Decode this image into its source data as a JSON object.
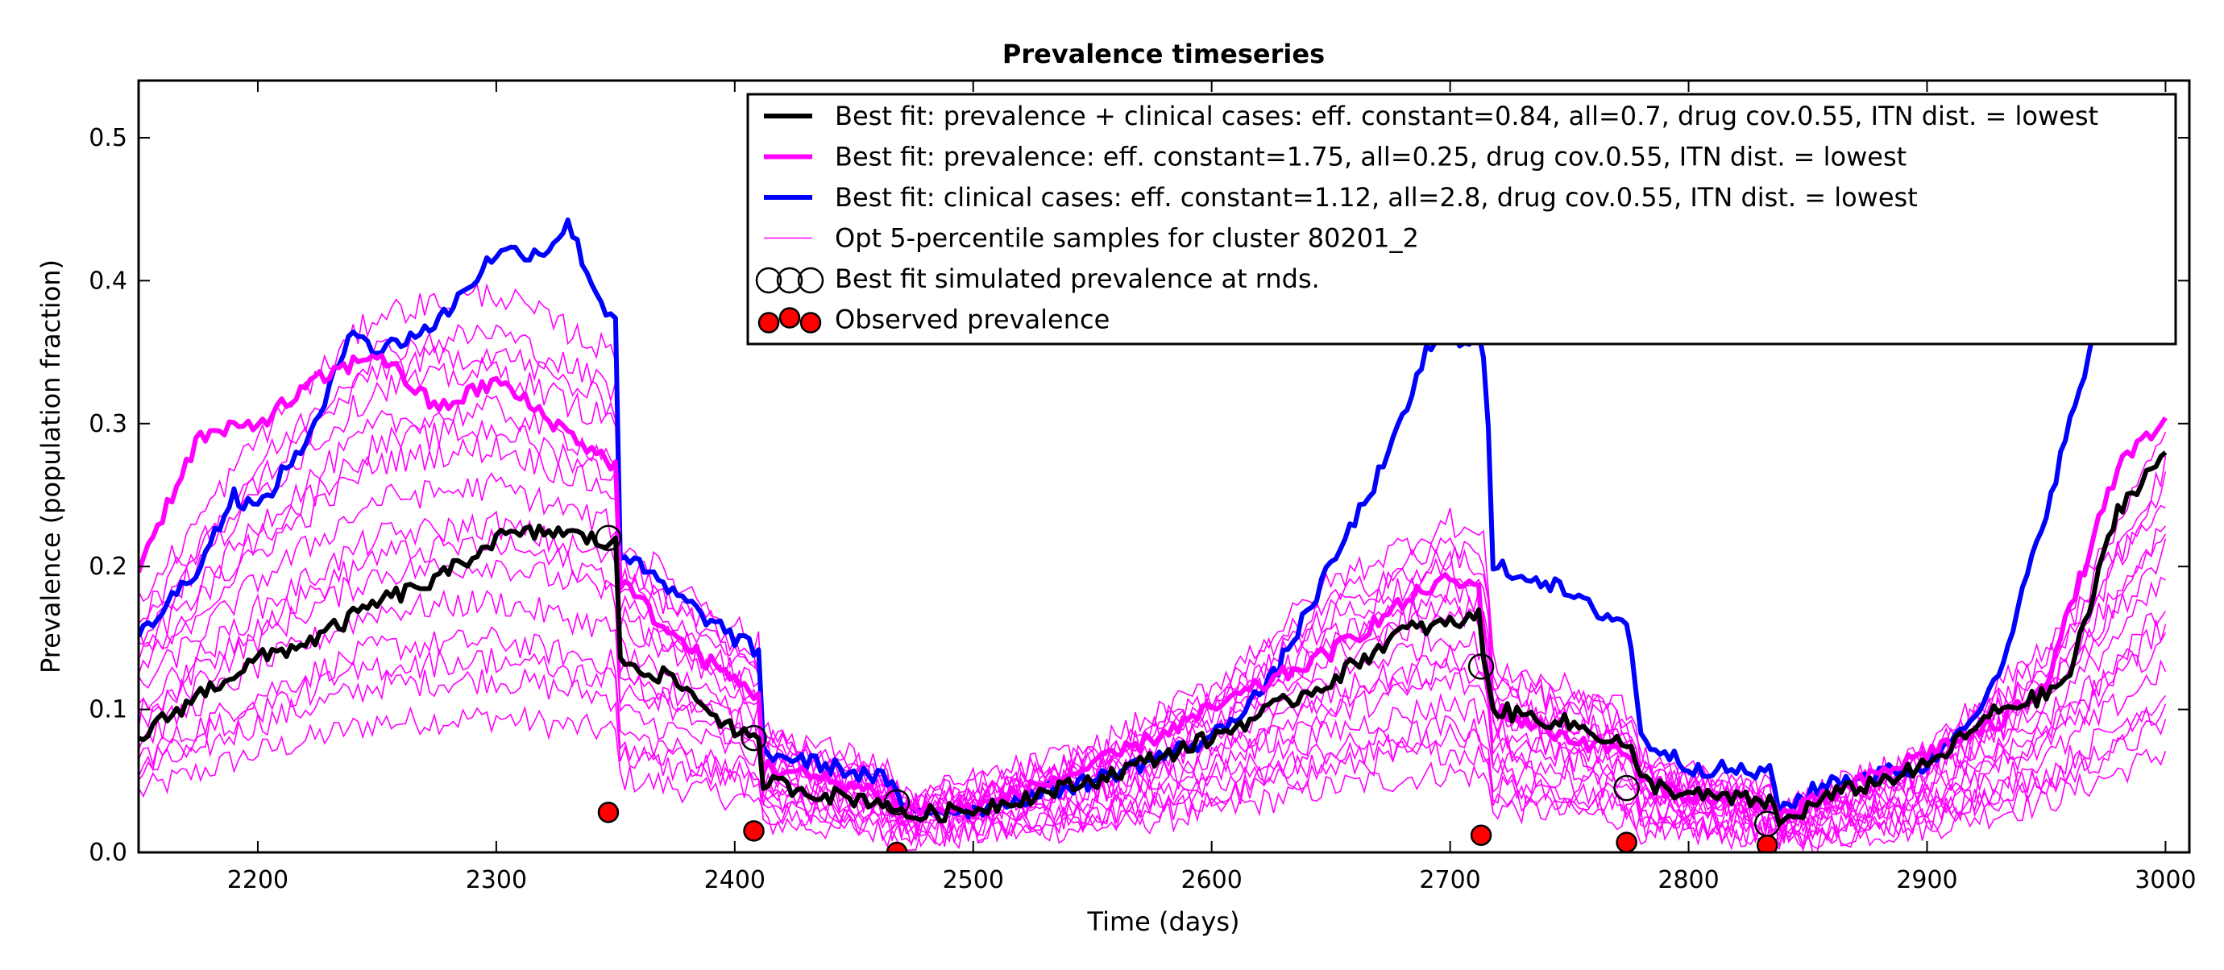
{
  "chart_data": {
    "type": "line",
    "title": "Prevalence timeseries",
    "xlabel": "Time (days)",
    "ylabel": "Prevalence (population fraction)",
    "xlim": [
      2150,
      3010
    ],
    "ylim": [
      0.0,
      0.54
    ],
    "xticks": [
      2200,
      2300,
      2400,
      2500,
      2600,
      2700,
      2800,
      2900,
      3000
    ],
    "xtick_labels": [
      "2200",
      "2300",
      "2400",
      "2500",
      "2600",
      "2700",
      "2800",
      "2900",
      "3000"
    ],
    "yticks": [
      0.0,
      0.1,
      0.2,
      0.3,
      0.4,
      0.5
    ],
    "ytick_labels": [
      "0.0",
      "0.1",
      "0.2",
      "0.3",
      "0.4",
      "0.5"
    ],
    "grid": false,
    "legend_position": "top-right",
    "series": [
      {
        "name": "Best fit: prevalence + clinical cases: eff. constant=0.84, all=0.7, drug cov.0.55, ITN dist. = lowest",
        "kind": "line-thick",
        "color": "#000000",
        "x": [
          2150,
          2175,
          2200,
          2225,
          2250,
          2275,
          2300,
          2325,
          2350,
          2352,
          2375,
          2400,
          2410,
          2412,
          2440,
          2465,
          2470,
          2500,
          2550,
          2600,
          2650,
          2680,
          2700,
          2712,
          2715,
          2718,
          2750,
          2775,
          2780,
          2800,
          2835,
          2838,
          2860,
          2900,
          2930,
          2950,
          2960,
          2980,
          3000
        ],
        "y": [
          0.08,
          0.11,
          0.135,
          0.15,
          0.175,
          0.19,
          0.22,
          0.225,
          0.215,
          0.135,
          0.12,
          0.085,
          0.075,
          0.05,
          0.04,
          0.035,
          0.025,
          0.03,
          0.05,
          0.08,
          0.12,
          0.155,
          0.16,
          0.165,
          0.13,
          0.1,
          0.09,
          0.075,
          0.05,
          0.04,
          0.035,
          0.02,
          0.04,
          0.06,
          0.1,
          0.11,
          0.125,
          0.24,
          0.28
        ]
      },
      {
        "name": "Best fit: prevalence: eff. constant=1.75, all=0.25, drug cov.0.55, ITN dist. = lowest",
        "kind": "line-thick",
        "color": "#ff00ff",
        "x": [
          2150,
          2175,
          2200,
          2225,
          2250,
          2275,
          2300,
          2325,
          2350,
          2352,
          2375,
          2400,
          2410,
          2412,
          2440,
          2465,
          2470,
          2500,
          2550,
          2600,
          2650,
          2690,
          2700,
          2712,
          2715,
          2718,
          2750,
          2775,
          2780,
          2800,
          2835,
          2838,
          2860,
          2900,
          2930,
          2950,
          2960,
          2980,
          3000
        ],
        "y": [
          0.2,
          0.29,
          0.3,
          0.33,
          0.35,
          0.31,
          0.33,
          0.3,
          0.27,
          0.19,
          0.15,
          0.12,
          0.11,
          0.06,
          0.05,
          0.04,
          0.03,
          0.03,
          0.06,
          0.1,
          0.14,
          0.185,
          0.19,
          0.185,
          0.12,
          0.1,
          0.08,
          0.07,
          0.05,
          0.04,
          0.035,
          0.025,
          0.04,
          0.07,
          0.09,
          0.12,
          0.17,
          0.27,
          0.3
        ]
      },
      {
        "name": "Best fit: clinical cases: eff. constant=1.12, all=2.8, drug cov.0.55, ITN dist. = lowest",
        "kind": "line-thick",
        "color": "#0000ff",
        "x": [
          2150,
          2175,
          2190,
          2200,
          2225,
          2240,
          2250,
          2275,
          2300,
          2320,
          2330,
          2345,
          2350,
          2352,
          2375,
          2400,
          2410,
          2412,
          2440,
          2465,
          2470,
          2500,
          2550,
          2600,
          2625,
          2650,
          2675,
          2690,
          2700,
          2712,
          2715,
          2718,
          2740,
          2760,
          2775,
          2780,
          2800,
          2835,
          2838,
          2860,
          2900,
          2930,
          2950,
          2970,
          2985
        ],
        "y": [
          0.15,
          0.2,
          0.25,
          0.24,
          0.3,
          0.37,
          0.35,
          0.37,
          0.42,
          0.42,
          0.44,
          0.38,
          0.375,
          0.21,
          0.18,
          0.15,
          0.14,
          0.07,
          0.06,
          0.05,
          0.03,
          0.03,
          0.05,
          0.08,
          0.12,
          0.2,
          0.28,
          0.35,
          0.36,
          0.36,
          0.34,
          0.2,
          0.19,
          0.17,
          0.16,
          0.08,
          0.06,
          0.055,
          0.03,
          0.05,
          0.06,
          0.12,
          0.24,
          0.36,
          0.37
        ]
      },
      {
        "name": "Opt 5-percentile samples for cluster 80201_2",
        "kind": "samples",
        "color": "#ff00ff",
        "sample_scales": [
          0.35,
          0.45,
          0.55,
          0.65,
          0.75,
          0.85,
          0.95,
          1.05,
          1.15,
          1.25,
          1.35,
          1.45,
          0.5,
          0.8,
          1.1,
          1.3
        ],
        "x": [
          2150,
          2200,
          2250,
          2300,
          2350,
          2352,
          2400,
          2410,
          2412,
          2465,
          2470,
          2550,
          2600,
          2650,
          2700,
          2715,
          2718,
          2775,
          2780,
          2835,
          2838,
          2900,
          2950,
          3000
        ],
        "y": [
          0.12,
          0.2,
          0.26,
          0.27,
          0.24,
          0.15,
          0.11,
          0.1,
          0.06,
          0.04,
          0.025,
          0.05,
          0.08,
          0.13,
          0.16,
          0.15,
          0.09,
          0.07,
          0.045,
          0.03,
          0.02,
          0.05,
          0.1,
          0.2
        ]
      },
      {
        "name": "Best fit simulated prevalence at rnds.",
        "kind": "marker-open",
        "color": "#000000",
        "x": [
          2347,
          2408,
          2468,
          2713,
          2774,
          2833
        ],
        "y": [
          0.22,
          0.08,
          0.035,
          0.13,
          0.045,
          0.02
        ]
      },
      {
        "name": "Observed prevalence",
        "kind": "marker-filled",
        "color": "#ff0000",
        "x": [
          2347,
          2408,
          2468,
          2713,
          2774,
          2833
        ],
        "y": [
          0.028,
          0.015,
          0.0,
          0.012,
          0.007,
          0.005
        ]
      }
    ]
  }
}
